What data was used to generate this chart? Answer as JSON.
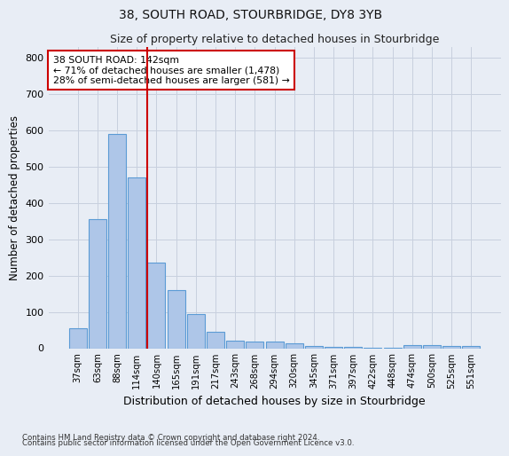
{
  "title": "38, SOUTH ROAD, STOURBRIDGE, DY8 3YB",
  "subtitle": "Size of property relative to detached houses in Stourbridge",
  "xlabel": "Distribution of detached houses by size in Stourbridge",
  "ylabel": "Number of detached properties",
  "footnote1": "Contains HM Land Registry data © Crown copyright and database right 2024.",
  "footnote2": "Contains public sector information licensed under the Open Government Licence v3.0.",
  "bar_labels": [
    "37sqm",
    "63sqm",
    "88sqm",
    "114sqm",
    "140sqm",
    "165sqm",
    "191sqm",
    "217sqm",
    "243sqm",
    "268sqm",
    "294sqm",
    "320sqm",
    "345sqm",
    "371sqm",
    "397sqm",
    "422sqm",
    "448sqm",
    "474sqm",
    "500sqm",
    "525sqm",
    "551sqm"
  ],
  "bar_values": [
    55,
    355,
    590,
    470,
    235,
    160,
    95,
    45,
    20,
    18,
    18,
    13,
    5,
    3,
    3,
    2,
    1,
    8,
    8,
    5,
    5
  ],
  "bar_color": "#aec6e8",
  "bar_edge_color": "#5b9bd5",
  "grid_color": "#c8d0de",
  "background_color": "#e8edf5",
  "vline_color": "#cc0000",
  "annotation_text_line1": "38 SOUTH ROAD: 142sqm",
  "annotation_text_line2": "← 71% of detached houses are smaller (1,478)",
  "annotation_text_line3": "28% of semi-detached houses are larger (581) →",
  "annotation_box_color": "#ffffff",
  "annotation_border_color": "#cc0000",
  "ylim": [
    0,
    830
  ],
  "yticks": [
    0,
    100,
    200,
    300,
    400,
    500,
    600,
    700,
    800
  ],
  "title_fontsize": 10,
  "subtitle_fontsize": 9
}
